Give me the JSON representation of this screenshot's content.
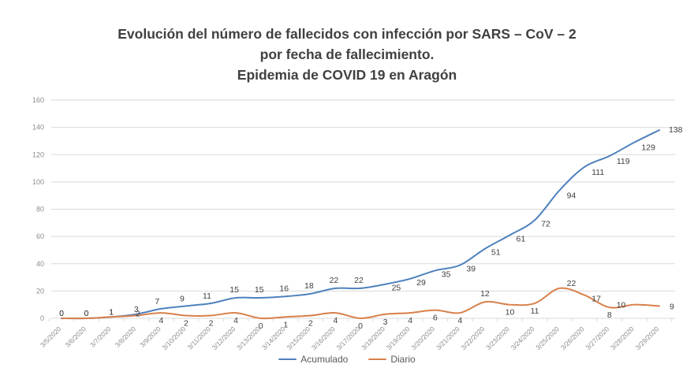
{
  "title": {
    "line1": "Evolución del número de fallecidos con infección por SARS – CoV – 2",
    "line2": "por fecha de fallecimiento.",
    "line3": "Epidemia de COVID 19 en Aragón"
  },
  "colors": {
    "acumulado": "#4E81BD",
    "diario": "#D9804A",
    "grid": "#D9D9D9",
    "axis_text": "#8C8C8C",
    "label_text": "#404040",
    "title_text": "#404040",
    "legend_text": "#595959",
    "background": "#FFFFFF"
  },
  "chart_data": {
    "type": "line",
    "x": [
      "3/5/2020",
      "3/6/2020",
      "3/7/2020",
      "3/8/2020",
      "3/9/2020",
      "3/10/2020",
      "3/11/2020",
      "3/12/2020",
      "3/13/2020",
      "3/14/2020",
      "3/15/2020",
      "3/16/2020",
      "3/17/2020",
      "3/18/2020",
      "3/19/2020",
      "3/20/2020",
      "3/21/2020",
      "3/22/2020",
      "3/23/2020",
      "3/24/2020",
      "3/25/2020",
      "3/26/2020",
      "3/27/2020",
      "3/28/2020",
      "3/29/2020"
    ],
    "series": [
      {
        "name": "Acumulado",
        "color": "#4E81BD",
        "values": [
          0,
          0,
          1,
          3,
          7,
          9,
          11,
          15,
          15,
          16,
          18,
          22,
          22,
          25,
          29,
          35,
          39,
          51,
          61,
          72,
          94,
          111,
          119,
          129,
          138
        ]
      },
      {
        "name": "Diario",
        "color": "#D9804A",
        "values": [
          0,
          0,
          1,
          2,
          4,
          2,
          2,
          4,
          0,
          1,
          2,
          4,
          0,
          3,
          4,
          6,
          4,
          12,
          10,
          11,
          22,
          17,
          8,
          10,
          9
        ]
      }
    ],
    "title": "Evolución del número de fallecidos con infección por SARS – CoV – 2 por fecha de fallecimiento. Epidemia de COVID 19 en Aragón",
    "xlabel": "",
    "ylabel": "",
    "ylim": [
      0,
      160
    ],
    "yticks": [
      0,
      20,
      40,
      60,
      80,
      100,
      120,
      140,
      160
    ],
    "grid": true,
    "smoothed_lines": true,
    "data_labels": true,
    "legend_position": "bottom"
  }
}
